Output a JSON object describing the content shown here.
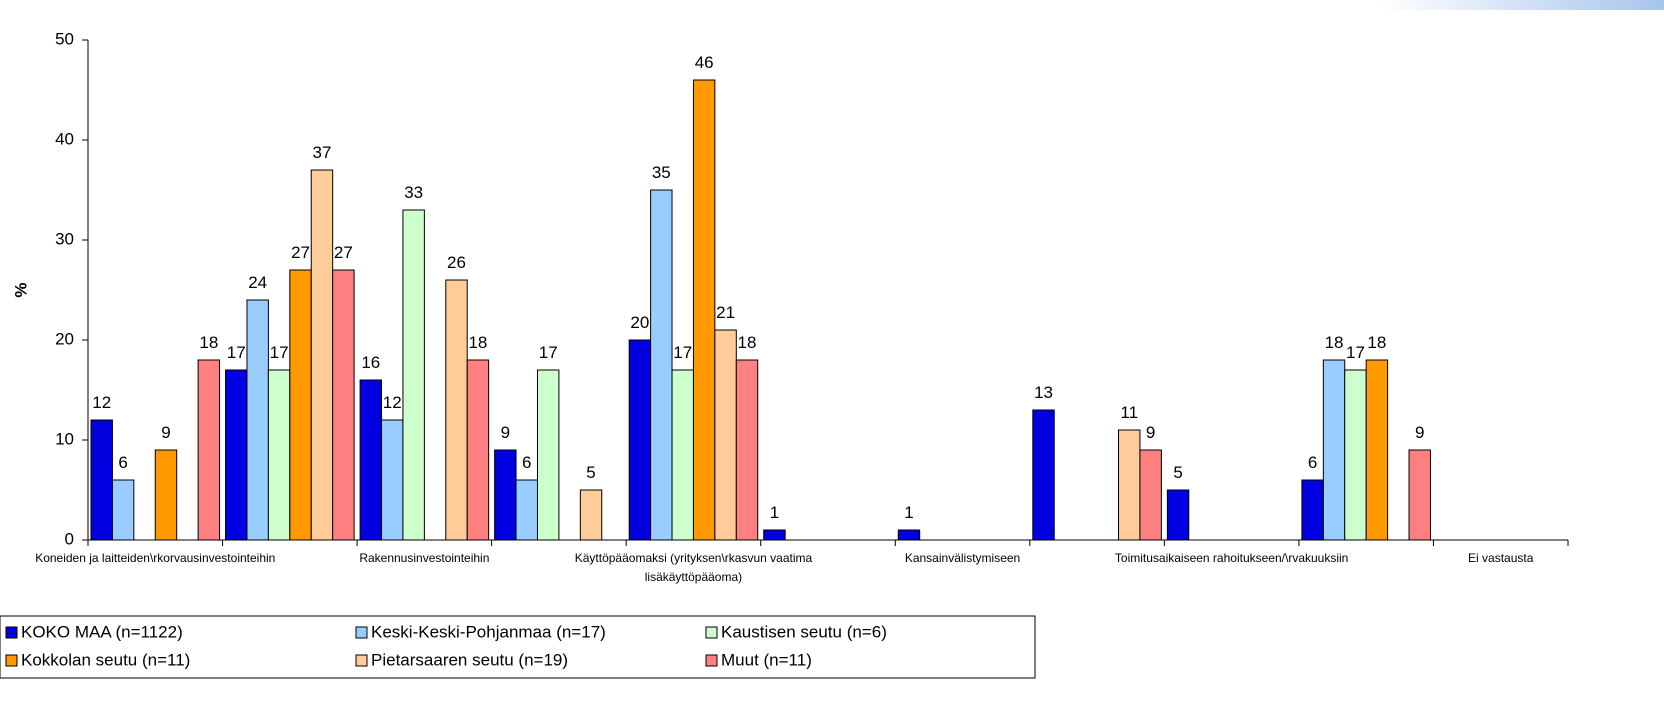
{
  "chart_data": {
    "type": "bar",
    "y_label": "%",
    "categories": [
      "Koneiden ja laitteiden\\rkorvausinvestointeihin",
      null,
      "Rakennusinvestointeihin",
      null,
      "Käyttöpääomaksi (yrityksen\\rkasvun vaatima lisäkäyttöpääoma)",
      null,
      "Kansainvälistymiseen",
      null,
      "Toimitusaikaiseen rahoitukseen/\\rvakuuksiin",
      null,
      "Ei vastausta"
    ],
    "series": [
      {
        "name": "KOKO MAA (n=1122)",
        "color": "#0000e0",
        "values": [
          12,
          17,
          16,
          9,
          20,
          1,
          1,
          13,
          5,
          6,
          null
        ]
      },
      {
        "name": "Keski-Keski-Pohjanmaa (n=17)",
        "color": "#99ccff",
        "values": [
          6,
          24,
          12,
          6,
          35,
          null,
          null,
          null,
          null,
          18,
          null
        ]
      },
      {
        "name": "Kaustisen seutu (n=6)",
        "color": "#ccffcc",
        "values": [
          null,
          17,
          33,
          17,
          17,
          null,
          null,
          null,
          null,
          17,
          null
        ]
      },
      {
        "name": "Kokkolan seutu (n=11)",
        "color": "#ff9900",
        "values": [
          9,
          27,
          null,
          null,
          46,
          null,
          null,
          null,
          null,
          18,
          null
        ]
      },
      {
        "name": "Pietarsaaren seutu (n=19)",
        "color": "#ffcc99",
        "values": [
          null,
          37,
          26,
          5,
          21,
          null,
          null,
          11,
          null,
          null,
          null
        ]
      },
      {
        "name": "Muut (n=11)",
        "color": "#ff8080",
        "values": [
          18,
          27,
          18,
          null,
          18,
          null,
          null,
          9,
          null,
          9,
          null
        ]
      }
    ],
    "ylim": [
      0,
      50
    ],
    "yticks": [
      0,
      10,
      20,
      30,
      40,
      50
    ],
    "grid": false
  }
}
